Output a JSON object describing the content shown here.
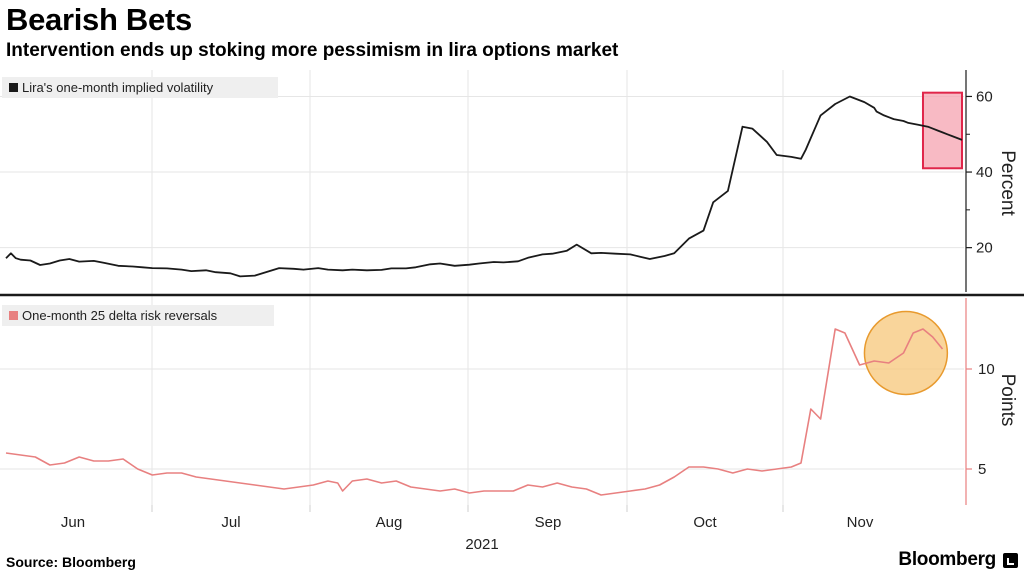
{
  "header": {
    "title": "Bearish Bets",
    "subtitle": "Intervention ends up stoking more pessimism in lira options market"
  },
  "footer": {
    "source": "Source: Bloomberg",
    "brand": "Bloomberg"
  },
  "colors": {
    "top_series": "#1a1a1a",
    "bottom_series": "#e88080",
    "highlight_box_fill": "#f5a3b0",
    "highlight_box_stroke": "#e0264a",
    "highlight_circle_fill": "#f7c77a",
    "highlight_circle_stroke": "#e89a2e",
    "grid": "#e6e6e6"
  },
  "chart_data": [
    {
      "type": "line",
      "legend": "Lira's one-month implied volatility",
      "ylabel": "Percent",
      "yticks": [
        20,
        40,
        60
      ],
      "ylim": [
        8,
        67
      ],
      "xticks": [
        "Jun",
        "Jul",
        "Aug",
        "Sep",
        "Oct",
        "Nov"
      ],
      "xlabel": "2021",
      "x": [
        0,
        1,
        2,
        3,
        5,
        7,
        9,
        11,
        13,
        15,
        18,
        20,
        23,
        26,
        28,
        30,
        33,
        36,
        38,
        41,
        43,
        46,
        48,
        51,
        54,
        56,
        59,
        61,
        64,
        66,
        69,
        71,
        74,
        77,
        79,
        82,
        84,
        87,
        89,
        92,
        95,
        97,
        100,
        102,
        105,
        107,
        110,
        112,
        115,
        117,
        120,
        122,
        125,
        128,
        130,
        132,
        135,
        137,
        140,
        143,
        145,
        148,
        151,
        153,
        156,
        158,
        161,
        163,
        164,
        165,
        166,
        167,
        170,
        173,
        176,
        178,
        178.5,
        180,
        182,
        184,
        185,
        187,
        189,
        190,
        191,
        192,
        193,
        194,
        195,
        196
      ],
      "values": [
        17.2,
        18.5,
        17.2,
        16.8,
        16.6,
        15.4,
        15.8,
        16.6,
        17.0,
        16.3,
        16.5,
        16.0,
        15.2,
        15.0,
        14.8,
        14.6,
        14.5,
        14.2,
        13.8,
        14.0,
        13.5,
        13.2,
        12.4,
        12.6,
        13.8,
        14.6,
        14.4,
        14.2,
        14.6,
        14.2,
        14.0,
        14.2,
        14.0,
        14.1,
        14.5,
        14.5,
        14.8,
        15.6,
        15.8,
        15.2,
        15.5,
        15.8,
        16.2,
        16.1,
        16.4,
        17.3,
        18.2,
        18.4,
        19.2,
        20.8,
        18.5,
        18.6,
        18.4,
        18.2,
        17.6,
        17.0,
        17.8,
        18.5,
        22.4,
        24.5,
        32.0,
        35.0,
        52.0,
        51.5,
        48.0,
        44.5,
        44.0,
        43.5,
        46.0,
        49.0,
        52.0,
        55.0,
        58.0,
        60.0,
        58.5,
        57.0,
        56.0,
        55.0,
        54.0,
        53.5,
        53.0,
        52.5,
        52.0,
        51.5,
        51.0,
        50.5,
        50.0,
        49.5,
        49.0,
        48.5
      ],
      "highlight": {
        "shape": "box",
        "x": [
          188,
          196
        ],
        "y": [
          41,
          61
        ]
      }
    },
    {
      "type": "line",
      "legend": "One-month 25 delta risk reversals",
      "ylabel": "Points",
      "yticks": [
        5,
        10
      ],
      "ylim": [
        3.2,
        13.6
      ],
      "x": [
        0,
        3,
        6,
        9,
        12,
        15,
        18,
        21,
        24,
        27,
        30,
        33,
        36,
        39,
        42,
        45,
        48,
        51,
        54,
        57,
        60,
        63,
        66,
        68,
        69,
        71,
        74,
        77,
        80,
        83,
        86,
        89,
        92,
        95,
        98,
        101,
        104,
        107,
        110,
        113,
        116,
        119,
        122,
        125,
        128,
        131,
        134,
        137,
        140,
        143,
        146,
        149,
        152,
        155,
        158,
        161,
        163,
        165,
        167,
        170,
        172,
        175,
        178,
        181,
        184,
        186,
        188,
        190,
        192
      ],
      "values": [
        5.8,
        5.7,
        5.6,
        5.2,
        5.3,
        5.6,
        5.4,
        5.4,
        5.5,
        5.0,
        4.7,
        4.8,
        4.8,
        4.6,
        4.5,
        4.4,
        4.3,
        4.2,
        4.1,
        4.0,
        4.1,
        4.2,
        4.4,
        4.3,
        3.9,
        4.4,
        4.5,
        4.3,
        4.4,
        4.1,
        4.0,
        3.9,
        4.0,
        3.8,
        3.9,
        3.9,
        3.9,
        4.2,
        4.1,
        4.3,
        4.1,
        4.0,
        3.7,
        3.8,
        3.9,
        4.0,
        4.2,
        4.6,
        5.1,
        5.1,
        5.0,
        4.8,
        5.0,
        4.9,
        5.0,
        5.1,
        5.3,
        8.0,
        7.5,
        12.0,
        11.8,
        10.2,
        10.4,
        10.3,
        10.8,
        11.8,
        12.0,
        11.6,
        11.0
      ],
      "highlight": {
        "shape": "circle",
        "center": [
          184.5,
          10.8
        ],
        "radius_x": 8.5
      }
    }
  ]
}
